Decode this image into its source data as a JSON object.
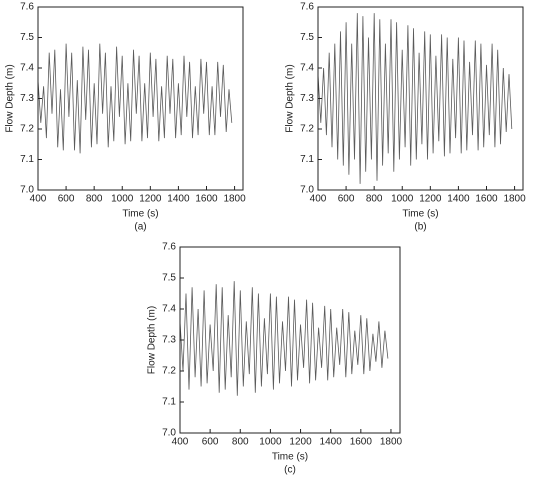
{
  "chart_data": [
    {
      "type": "line",
      "xlabel": "Time (s)",
      "ylabel": "Flow Depth (m)",
      "caption": "(a)",
      "x": [
        400,
        420,
        440,
        460,
        480,
        500,
        520,
        540,
        560,
        580,
        600,
        620,
        640,
        660,
        680,
        700,
        720,
        740,
        760,
        780,
        800,
        820,
        840,
        860,
        880,
        900,
        920,
        940,
        960,
        980,
        1000,
        1020,
        1040,
        1060,
        1080,
        1100,
        1120,
        1140,
        1160,
        1180,
        1200,
        1220,
        1240,
        1260,
        1280,
        1300,
        1320,
        1340,
        1360,
        1380,
        1400,
        1420,
        1440,
        1460,
        1480,
        1500,
        1520,
        1540,
        1560,
        1580,
        1600,
        1620,
        1640,
        1660,
        1680,
        1700,
        1720,
        1740,
        1760,
        1780
      ],
      "series": [
        {
          "color": "#5a5a5a",
          "values": [
            7.36,
            7.22,
            7.34,
            7.17,
            7.45,
            7.25,
            7.46,
            7.14,
            7.33,
            7.13,
            7.48,
            7.24,
            7.45,
            7.13,
            7.36,
            7.12,
            7.47,
            7.23,
            7.46,
            7.14,
            7.35,
            7.15,
            7.48,
            7.25,
            7.45,
            7.14,
            7.34,
            7.16,
            7.47,
            7.24,
            7.44,
            7.15,
            7.35,
            7.16,
            7.46,
            7.25,
            7.44,
            7.16,
            7.35,
            7.17,
            7.45,
            7.24,
            7.43,
            7.16,
            7.34,
            7.17,
            7.44,
            7.25,
            7.43,
            7.17,
            7.35,
            7.18,
            7.44,
            7.24,
            7.42,
            7.17,
            7.34,
            7.18,
            7.43,
            7.25,
            7.42,
            7.18,
            7.34,
            7.18,
            7.42,
            7.24,
            7.41,
            7.19,
            7.33,
            7.22
          ]
        }
      ],
      "xlim": [
        400,
        1860
      ],
      "ylim": [
        7.0,
        7.6
      ],
      "xticks": [
        400,
        600,
        800,
        1000,
        1200,
        1400,
        1600,
        1800
      ],
      "yticks": [
        {
          "value": 7,
          "label": "7.0"
        },
        7.1,
        7.2,
        7.3,
        7.4,
        7.5,
        7.6
      ]
    },
    {
      "type": "line",
      "xlabel": "Time (s)",
      "ylabel": "Flow Depth (m)",
      "caption": "(b)",
      "x": [
        400,
        420,
        440,
        460,
        480,
        500,
        520,
        540,
        560,
        580,
        600,
        620,
        640,
        660,
        680,
        700,
        720,
        740,
        760,
        780,
        800,
        820,
        840,
        860,
        880,
        900,
        920,
        940,
        960,
        980,
        1000,
        1020,
        1040,
        1060,
        1080,
        1100,
        1120,
        1140,
        1160,
        1180,
        1200,
        1220,
        1240,
        1260,
        1280,
        1300,
        1320,
        1340,
        1360,
        1380,
        1400,
        1420,
        1440,
        1460,
        1480,
        1500,
        1520,
        1540,
        1560,
        1580,
        1600,
        1620,
        1640,
        1660,
        1680,
        1700,
        1720,
        1740,
        1760,
        1780
      ],
      "series": [
        {
          "color": "#5a5a5a",
          "values": [
            7.38,
            7.22,
            7.4,
            7.18,
            7.45,
            7.14,
            7.48,
            7.1,
            7.52,
            7.08,
            7.55,
            7.05,
            7.48,
            7.1,
            7.58,
            7.02,
            7.57,
            7.06,
            7.5,
            7.1,
            7.58,
            7.03,
            7.56,
            7.08,
            7.48,
            7.12,
            7.56,
            7.06,
            7.55,
            7.1,
            7.46,
            7.14,
            7.54,
            7.08,
            7.53,
            7.1,
            7.45,
            7.15,
            7.52,
            7.1,
            7.51,
            7.12,
            7.44,
            7.16,
            7.51,
            7.11,
            7.5,
            7.12,
            7.43,
            7.17,
            7.5,
            7.12,
            7.49,
            7.13,
            7.42,
            7.18,
            7.49,
            7.13,
            7.48,
            7.14,
            7.41,
            7.18,
            7.48,
            7.14,
            7.46,
            7.15,
            7.4,
            7.19,
            7.38,
            7.2
          ]
        }
      ],
      "xlim": [
        400,
        1860
      ],
      "ylim": [
        7.0,
        7.6
      ],
      "xticks": [
        400,
        600,
        800,
        1000,
        1200,
        1400,
        1600,
        1800
      ],
      "yticks": [
        {
          "value": 7,
          "label": "7.0"
        },
        7.1,
        7.2,
        7.3,
        7.4,
        7.5,
        7.6
      ]
    },
    {
      "type": "line",
      "xlabel": "Time (s)",
      "ylabel": "Flow Depth (m)",
      "caption": "(c)",
      "x": [
        400,
        420,
        440,
        460,
        480,
        500,
        520,
        540,
        560,
        580,
        600,
        620,
        640,
        660,
        680,
        700,
        720,
        740,
        760,
        780,
        800,
        820,
        840,
        860,
        880,
        900,
        920,
        940,
        960,
        980,
        1000,
        1020,
        1040,
        1060,
        1080,
        1100,
        1120,
        1140,
        1160,
        1180,
        1200,
        1220,
        1240,
        1260,
        1280,
        1300,
        1320,
        1340,
        1360,
        1380,
        1400,
        1420,
        1440,
        1460,
        1480,
        1500,
        1520,
        1540,
        1560,
        1580,
        1600,
        1620,
        1640,
        1660,
        1680,
        1700,
        1720,
        1740,
        1760,
        1780
      ],
      "series": [
        {
          "color": "#5a5a5a",
          "values": [
            7.36,
            7.2,
            7.45,
            7.14,
            7.47,
            7.18,
            7.4,
            7.15,
            7.46,
            7.16,
            7.35,
            7.2,
            7.48,
            7.13,
            7.47,
            7.14,
            7.38,
            7.18,
            7.49,
            7.12,
            7.46,
            7.15,
            7.36,
            7.19,
            7.47,
            7.13,
            7.45,
            7.15,
            7.37,
            7.19,
            7.45,
            7.14,
            7.44,
            7.16,
            7.36,
            7.2,
            7.44,
            7.15,
            7.43,
            7.17,
            7.35,
            7.21,
            7.43,
            7.16,
            7.42,
            7.17,
            7.34,
            7.21,
            7.41,
            7.17,
            7.4,
            7.18,
            7.34,
            7.22,
            7.4,
            7.18,
            7.39,
            7.19,
            7.33,
            7.22,
            7.38,
            7.19,
            7.37,
            7.2,
            7.32,
            7.23,
            7.36,
            7.21,
            7.33,
            7.24
          ]
        }
      ],
      "xlim": [
        400,
        1860
      ],
      "ylim": [
        7.0,
        7.6
      ],
      "xticks": [
        400,
        600,
        800,
        1000,
        1200,
        1400,
        1600,
        1800
      ],
      "yticks": [
        {
          "value": 7,
          "label": "7.0"
        },
        7.1,
        7.2,
        7.3,
        7.4,
        7.5,
        7.6
      ]
    }
  ]
}
